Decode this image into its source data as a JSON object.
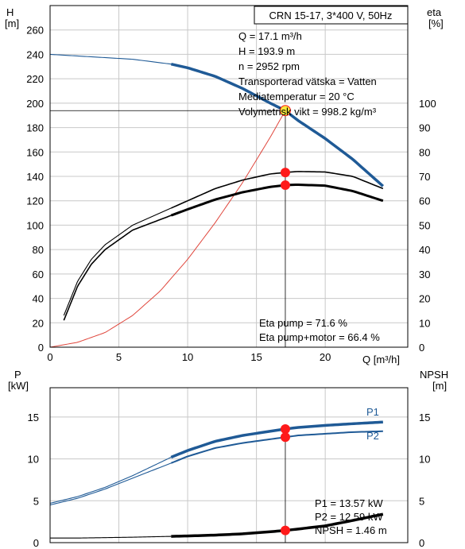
{
  "colors": {
    "head_curve": "#1f5a96",
    "power_curve": "#1f5a96",
    "system_curve": "#e0463c",
    "marker": "#ff1a1a",
    "operating_marker_fill": "#f5e63c",
    "grid": "#c8c8c8",
    "ink": "#000000"
  },
  "chart_data": [
    {
      "type": "line",
      "title_box": "CRN 15-17, 3*400 V, 50Hz",
      "xlabel": "Q [m³/h]",
      "ylabel_left": [
        "H",
        "[m]"
      ],
      "ylabel_right": [
        "eta",
        "[%]"
      ],
      "xlim": [
        0,
        26
      ],
      "ylim_left": [
        0,
        280
      ],
      "ylim_right": [
        0,
        140
      ],
      "xticks": [
        0,
        5,
        10,
        15,
        20
      ],
      "yticks_left": [
        0,
        20,
        40,
        60,
        80,
        100,
        120,
        140,
        160,
        180,
        200,
        220,
        240,
        260
      ],
      "yticks_right": [
        0,
        10,
        20,
        30,
        40,
        50,
        60,
        70,
        80,
        90,
        100
      ],
      "grid": true,
      "duty_point_info": [
        "Q = 17.1 m³/h",
        "H = 193.9 m",
        "n = 2952 rpm",
        "Transporterad vätska = Vatten",
        "Mediatemperatur = 20 °C",
        "Volymetrisk vikt = 998.2 kg/m³"
      ],
      "eta_info": [
        "Eta pump = 71.6 %",
        "Eta pump+motor = 66.4 %"
      ],
      "operating_point": {
        "Q": 17.1,
        "H": 193.9,
        "eta_pump": 71.6,
        "eta_pump_motor": 66.4
      },
      "series": [
        {
          "key": "head",
          "axis": "left",
          "x": [
            0,
            3,
            6,
            8.8,
            10,
            12,
            14,
            16,
            17.1,
            18,
            20,
            22,
            24.2
          ],
          "y": [
            240,
            238,
            236,
            232,
            229,
            222,
            212,
            200,
            193.9,
            186,
            171,
            154,
            132
          ]
        },
        {
          "key": "system",
          "axis": "left",
          "x": [
            0,
            2,
            4,
            6,
            8,
            10,
            12,
            14,
            16,
            17.1
          ],
          "y": [
            0,
            4,
            12,
            26,
            46,
            72,
            102,
            135,
            172,
            193.9
          ]
        },
        {
          "key": "eta_pump",
          "axis": "right",
          "x": [
            1,
            2,
            3,
            4,
            6,
            8.8,
            10,
            12,
            14,
            16,
            17.1,
            18,
            20,
            22,
            24.2
          ],
          "y": [
            13,
            27,
            36,
            42,
            50,
            57,
            60,
            65,
            68.5,
            71,
            71.6,
            72,
            71.8,
            70,
            65
          ]
        },
        {
          "key": "eta_pump_motor",
          "axis": "right",
          "x": [
            1,
            2,
            3,
            4,
            6,
            8.8,
            10,
            12,
            14,
            16,
            17.1,
            18,
            20,
            22,
            24.2
          ],
          "y": [
            11,
            25,
            34,
            40,
            48,
            54,
            56.5,
            60.5,
            63.5,
            65.7,
            66.4,
            66.6,
            66.2,
            64,
            60
          ]
        }
      ]
    },
    {
      "type": "line",
      "xlim": [
        0,
        26
      ],
      "ylabel_left": [
        "P",
        "[kW]"
      ],
      "ylabel_right": [
        "NPSH",
        "[m]"
      ],
      "ylim_left": [
        0,
        18.5
      ],
      "ylim_right": [
        0,
        18.5
      ],
      "xticks": [
        0,
        5,
        10,
        15,
        20
      ],
      "yticks_left": [
        0,
        5,
        10,
        15
      ],
      "yticks_right": [
        0,
        5,
        10,
        15
      ],
      "grid": true,
      "power_info": [
        "P1 = 13.57 kW",
        "P2 = 12.59 kW",
        "NPSH = 1.46 m"
      ],
      "operating_point": {
        "Q": 17.1,
        "P1": 13.57,
        "P2": 12.59,
        "NPSH": 1.46
      },
      "series": [
        {
          "key": "P1",
          "name": "P1",
          "axis": "left",
          "x": [
            0,
            2,
            4,
            6,
            8.8,
            10,
            12,
            14,
            16,
            17.1,
            18,
            20,
            22,
            24.2
          ],
          "y": [
            4.7,
            5.5,
            6.6,
            8.0,
            10.2,
            11.0,
            12.1,
            12.8,
            13.3,
            13.57,
            13.75,
            14.0,
            14.2,
            14.4
          ]
        },
        {
          "key": "P2",
          "name": "P2",
          "axis": "left",
          "x": [
            0,
            2,
            4,
            6,
            8.8,
            10,
            12,
            14,
            16,
            17.1,
            18,
            20,
            22,
            24.2
          ],
          "y": [
            4.5,
            5.3,
            6.4,
            7.7,
            9.5,
            10.3,
            11.3,
            11.9,
            12.35,
            12.59,
            12.8,
            13.0,
            13.2,
            13.3
          ]
        },
        {
          "key": "NPSH",
          "axis": "right",
          "x": [
            0,
            2,
            4,
            6,
            8.8,
            10,
            12,
            14,
            16,
            17.1,
            18,
            20,
            22,
            24.2
          ],
          "y": [
            0.55,
            0.55,
            0.6,
            0.65,
            0.75,
            0.8,
            0.9,
            1.05,
            1.3,
            1.46,
            1.62,
            2.0,
            2.65,
            3.4
          ]
        }
      ]
    }
  ]
}
